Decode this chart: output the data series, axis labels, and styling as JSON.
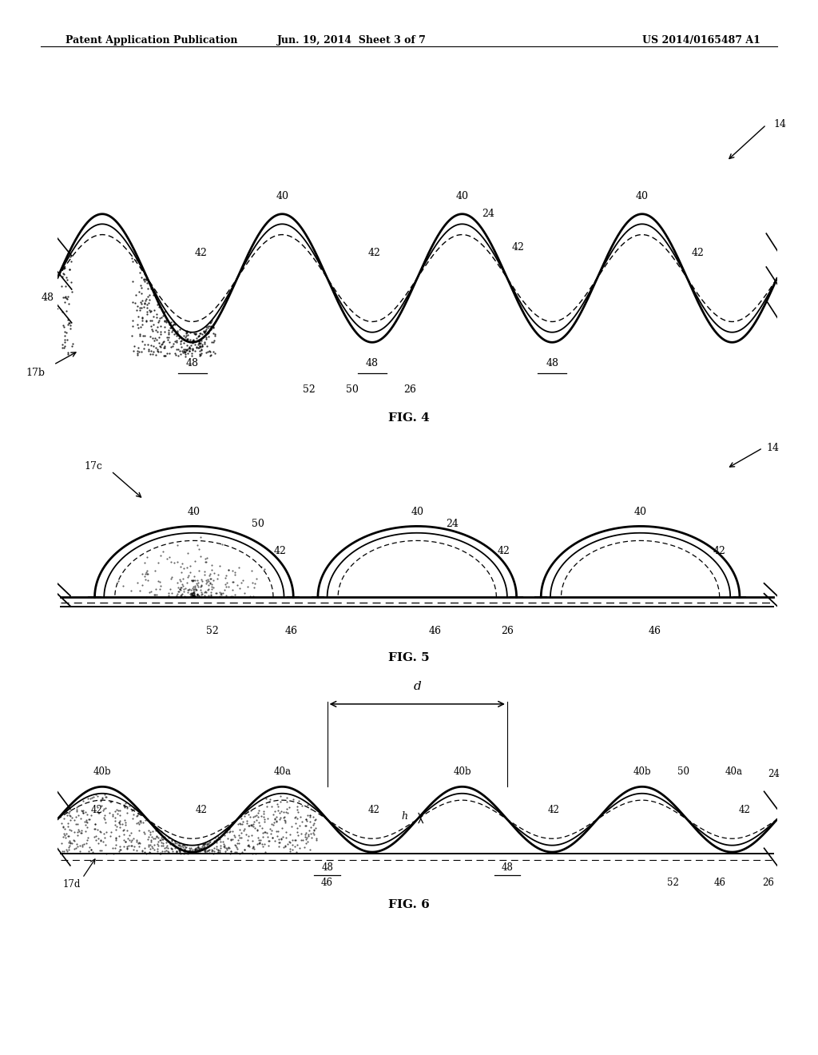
{
  "bg_color": "#ffffff",
  "text_color": "#000000",
  "header_left": "Patent Application Publication",
  "header_mid": "Jun. 19, 2014  Sheet 3 of 7",
  "header_right": "US 2014/0165487 A1",
  "fig4_label": "FIG. 4",
  "fig5_label": "FIG. 5",
  "fig6_label": "FIG. 6",
  "line_color": "#000000"
}
